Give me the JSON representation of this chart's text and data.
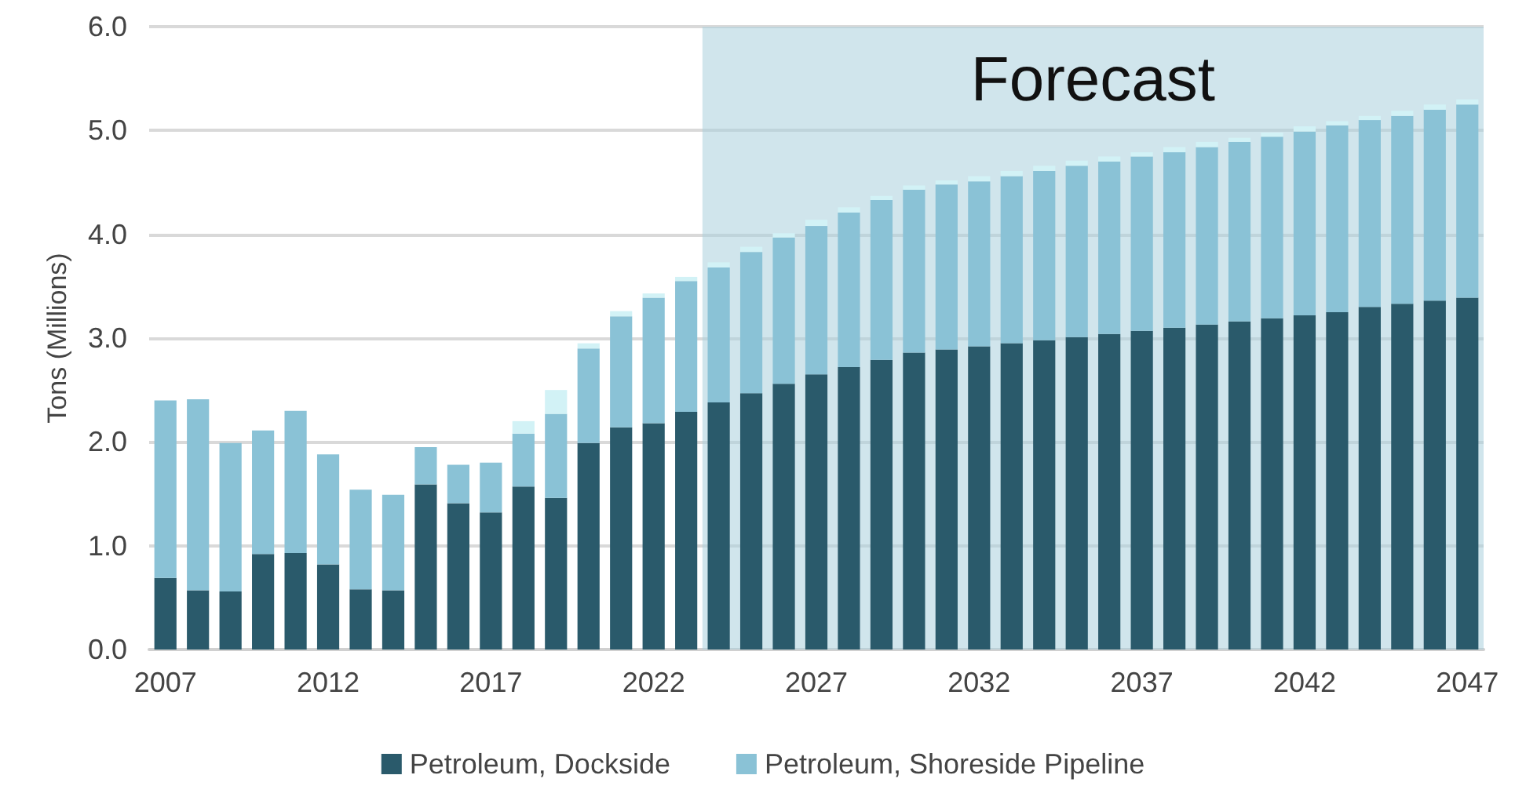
{
  "chart_data": {
    "type": "bar",
    "stacked": true,
    "ylabel": "Tons (Millions)",
    "categories": [
      "2007",
      null,
      null,
      null,
      null,
      "2012",
      null,
      null,
      null,
      null,
      "2017",
      null,
      null,
      null,
      null,
      "2022",
      null,
      null,
      null,
      null,
      "2027",
      null,
      null,
      null,
      null,
      "2032",
      null,
      null,
      null,
      null,
      "2037",
      null,
      null,
      null,
      null,
      "2042",
      null,
      null,
      null,
      null,
      "2047"
    ],
    "series": [
      {
        "name": "Petroleum, Dockside",
        "color": "#2a5a6b",
        "values": [
          0.69,
          0.57,
          0.56,
          0.92,
          0.93,
          0.82,
          0.58,
          0.57,
          1.59,
          1.41,
          1.32,
          1.57,
          1.46,
          1.99,
          2.14,
          2.18,
          2.29,
          2.38,
          2.47,
          2.56,
          2.65,
          2.72,
          2.79,
          2.86,
          2.89,
          2.92,
          2.95,
          2.98,
          3.01,
          3.04,
          3.07,
          3.1,
          3.13,
          3.16,
          3.19,
          3.22,
          3.25,
          3.3,
          3.33,
          3.36,
          3.39
        ]
      },
      {
        "name": "Petroleum, Shoreside Pipeline",
        "color": "#8ac2d6",
        "values": [
          1.71,
          1.84,
          1.43,
          1.19,
          1.37,
          1.06,
          0.96,
          0.92,
          0.36,
          0.37,
          0.48,
          0.51,
          0.81,
          0.91,
          1.07,
          1.21,
          1.26,
          1.3,
          1.36,
          1.41,
          1.43,
          1.49,
          1.54,
          1.57,
          1.59,
          1.59,
          1.61,
          1.63,
          1.65,
          1.66,
          1.68,
          1.69,
          1.71,
          1.73,
          1.75,
          1.77,
          1.8,
          1.8,
          1.81,
          1.84,
          1.86
        ]
      },
      {
        "color": "#d2f2f6",
        "values": [
          null,
          null,
          null,
          null,
          null,
          null,
          null,
          null,
          null,
          null,
          null,
          0.12,
          0.23,
          0.05,
          0.05,
          0.04,
          0.04,
          0.05,
          0.05,
          0.04,
          0.06,
          0.05,
          0.04,
          0.04,
          0.04,
          0.05,
          0.05,
          0.05,
          0.05,
          0.05,
          0.04,
          0.05,
          0.05,
          0.04,
          0.04,
          0.05,
          0.04,
          0.04,
          0.05,
          0.05,
          0.05
        ]
      }
    ],
    "ylim": [
      0,
      6
    ],
    "yticks": [
      {
        "value": 0,
        "label": "0.0"
      },
      {
        "value": 1,
        "label": "1.0"
      },
      {
        "value": 2,
        "label": "2.0"
      },
      {
        "value": 3,
        "label": "3.0"
      },
      {
        "value": 4,
        "label": "4.0"
      },
      {
        "value": 5,
        "label": "5.0"
      },
      {
        "value": 6,
        "label": "6.0"
      }
    ],
    "annotations": [
      "Forecast"
    ],
    "grid": "y",
    "legend": "bottom"
  }
}
